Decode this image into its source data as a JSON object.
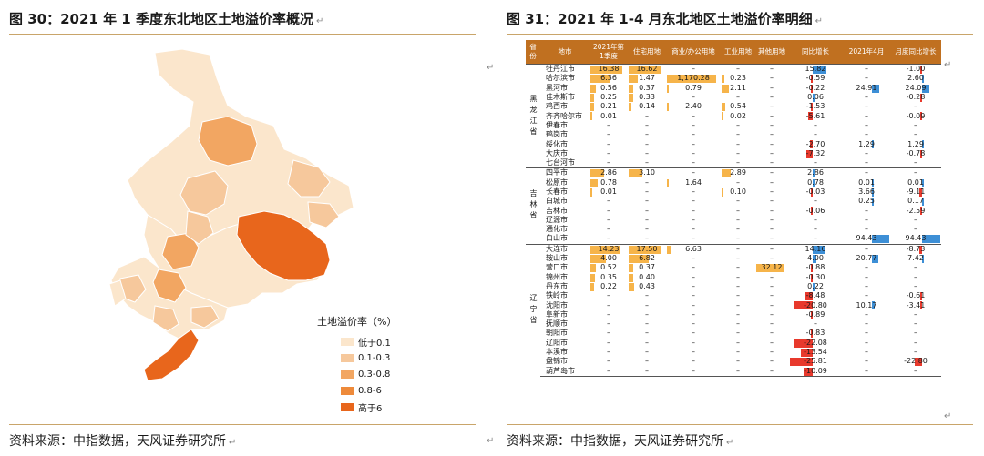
{
  "left_figure": {
    "title": "图 30：2021 年 1 季度东北地区土地溢价率概况",
    "source": "资料来源：中指数据，天风证券研究所",
    "legend": {
      "title": "土地溢价率（%）",
      "items": [
        {
          "label": "低于0.1",
          "color": "#fbe6cc"
        },
        {
          "label": "0.1-0.3",
          "color": "#f6c89c"
        },
        {
          "label": "0.3-0.8",
          "color": "#f2a662"
        },
        {
          "label": "0.8-6",
          "color": "#ee8a3a"
        },
        {
          "label": "高于6",
          "color": "#e8661c"
        }
      ]
    }
  },
  "right_figure": {
    "title": "图 31：2021 年 1-4 月东北地区土地溢价率明细",
    "source": "资料来源：中指数据，天风证券研究所",
    "headers": [
      "省份",
      "地市",
      "2021年第1季度",
      "住宅用地",
      "商业/办公用地",
      "工业用地",
      "其他用地",
      "同比增长",
      "2021年4月",
      "月度同比增长"
    ],
    "bar_colors": {
      "orange": "#f6b44a",
      "blue": "#3d8fd6",
      "red": "#e8392c"
    },
    "provinces": [
      {
        "name": "黑龙江省",
        "rows": [
          [
            "牡丹江市",
            "16.38",
            "16.62",
            "–",
            "–",
            "–",
            "15.82",
            "–",
            "-1.00"
          ],
          [
            "哈尔滨市",
            "6.36",
            "1.47",
            "1,170.28",
            "0.23",
            "–",
            "-0.59",
            "–",
            "2.60"
          ],
          [
            "黑河市",
            "0.56",
            "0.37",
            "0.79",
            "2.11",
            "–",
            "-0.22",
            "24.91",
            "24.09"
          ],
          [
            "佳木斯市",
            "0.25",
            "0.33",
            "–",
            "–",
            "–",
            "0.06",
            "–",
            "-0.28"
          ],
          [
            "鸡西市",
            "0.21",
            "0.14",
            "2.40",
            "0.54",
            "–",
            "-1.53",
            "–",
            "–"
          ],
          [
            "齐齐哈尔市",
            "0.01",
            "–",
            "–",
            "0.02",
            "–",
            "-5.61",
            "–",
            "-0.09"
          ],
          [
            "伊春市",
            "–",
            "–",
            "–",
            "–",
            "–",
            "–",
            "–",
            "–"
          ],
          [
            "鹤岗市",
            "–",
            "–",
            "–",
            "–",
            "–",
            "–",
            "–",
            "–"
          ],
          [
            "绥化市",
            "–",
            "–",
            "–",
            "–",
            "–",
            "-2.70",
            "1.29",
            "1.29"
          ],
          [
            "大庆市",
            "–",
            "–",
            "–",
            "–",
            "–",
            "-7.32",
            "–",
            "-0.78"
          ],
          [
            "七台河市",
            "–",
            "–",
            "–",
            "–",
            "–",
            "–",
            "–",
            "–"
          ]
        ]
      },
      {
        "name": "吉林省",
        "rows": [
          [
            "四平市",
            "2.86",
            "3.10",
            "–",
            "2.89",
            "–",
            "2.86",
            "–",
            "–"
          ],
          [
            "松原市",
            "0.78",
            "–",
            "1.64",
            "–",
            "–",
            "0.78",
            "0.01",
            "0.01"
          ],
          [
            "长春市",
            "0.01",
            "–",
            "–",
            "0.10",
            "–",
            "-0.03",
            "3.66",
            "-9.11"
          ],
          [
            "白城市",
            "–",
            "–",
            "–",
            "–",
            "–",
            "–",
            "0.25",
            "0.17"
          ],
          [
            "吉林市",
            "–",
            "–",
            "–",
            "–",
            "–",
            "-0.06",
            "–",
            "-2.59"
          ],
          [
            "辽源市",
            "–",
            "–",
            "–",
            "–",
            "–",
            "–",
            "–",
            "–"
          ],
          [
            "通化市",
            "–",
            "–",
            "–",
            "–",
            "–",
            "–",
            "–",
            "–"
          ],
          [
            "白山市",
            "–",
            "–",
            "–",
            "–",
            "–",
            "–",
            "94.43",
            "94.43"
          ]
        ]
      },
      {
        "name": "辽宁省",
        "rows": [
          [
            "大连市",
            "14.23",
            "17.50",
            "6.63",
            "–",
            "–",
            "14.16",
            "–",
            "-8.73"
          ],
          [
            "鞍山市",
            "4.00",
            "6.82",
            "–",
            "–",
            "–",
            "4.00",
            "20.77",
            "7.42"
          ],
          [
            "营口市",
            "0.52",
            "0.37",
            "–",
            "–",
            "32.12",
            "-0.88",
            "–",
            "–"
          ],
          [
            "锦州市",
            "0.35",
            "0.40",
            "–",
            "–",
            "–",
            "-0.30",
            "–",
            "–"
          ],
          [
            "丹东市",
            "0.22",
            "0.43",
            "–",
            "–",
            "–",
            "0.22",
            "–",
            "–"
          ],
          [
            "铁岭市",
            "–",
            "–",
            "–",
            "–",
            "–",
            "-8.48",
            "–",
            "-0.61"
          ],
          [
            "沈阳市",
            "–",
            "–",
            "–",
            "–",
            "–",
            "-20.80",
            "10.17",
            "-3.41"
          ],
          [
            "阜新市",
            "–",
            "–",
            "–",
            "–",
            "–",
            "-0.89",
            "–",
            "–"
          ],
          [
            "抚顺市",
            "–",
            "–",
            "–",
            "–",
            "–",
            "–",
            "–",
            "–"
          ],
          [
            "朝阳市",
            "–",
            "–",
            "–",
            "–",
            "–",
            "-0.83",
            "–",
            "–"
          ],
          [
            "辽阳市",
            "–",
            "–",
            "–",
            "–",
            "–",
            "-22.08",
            "–",
            "–"
          ],
          [
            "本溪市",
            "–",
            "–",
            "–",
            "–",
            "–",
            "-13.54",
            "–",
            "–"
          ],
          [
            "盘锦市",
            "–",
            "–",
            "–",
            "–",
            "–",
            "-25.81",
            "–",
            "-22.80"
          ],
          [
            "葫芦岛市",
            "–",
            "–",
            "–",
            "–",
            "–",
            "-10.09",
            "–",
            "–"
          ]
        ]
      }
    ]
  }
}
